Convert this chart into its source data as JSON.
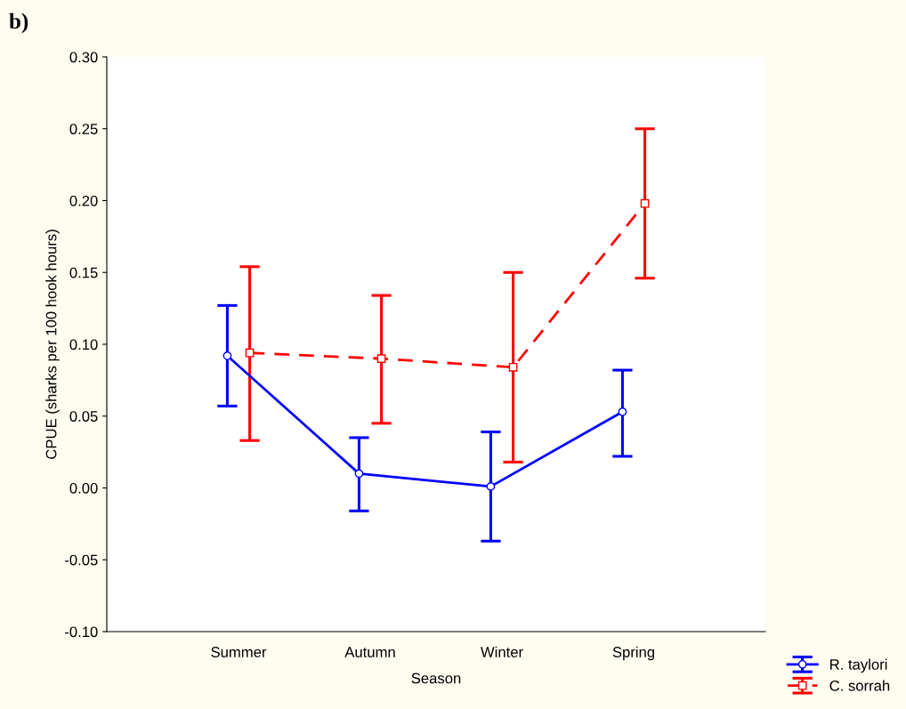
{
  "chart_data": {
    "type": "line",
    "title": "b)",
    "xlabel": "Season",
    "ylabel": "CPUE (sharks per 100 hook hours)",
    "categories": [
      "Summer",
      "Autumn",
      "Winter",
      "Spring"
    ],
    "series": [
      {
        "name": "R. taylori",
        "color": "#0000ff",
        "marker": "circle",
        "line_style": "solid",
        "values": [
          0.092,
          0.01,
          0.001,
          0.053
        ],
        "errors": [
          [
            0.057,
            0.127
          ],
          [
            -0.016,
            0.035
          ],
          [
            -0.037,
            0.039
          ],
          [
            0.022,
            0.082
          ]
        ]
      },
      {
        "name": "C. sorrah",
        "color": "#ff0000",
        "marker": "square",
        "line_style": "dashed",
        "values": [
          0.094,
          0.09,
          0.084,
          0.198
        ],
        "errors": [
          [
            0.033,
            0.154
          ],
          [
            0.045,
            0.134
          ],
          [
            0.018,
            0.15
          ],
          [
            0.146,
            0.25
          ]
        ]
      }
    ],
    "ylim": [
      -0.1,
      0.3
    ],
    "yticks": [
      {
        "value": -0.1,
        "label": "-0.10"
      },
      {
        "value": -0.05,
        "label": "-0.05"
      },
      {
        "value": 0,
        "label": "0.00"
      },
      {
        "value": 0.05,
        "label": "0.05"
      },
      {
        "value": 0.1,
        "label": "0.10"
      },
      {
        "value": 0.15,
        "label": "0.15"
      },
      {
        "value": 0.2,
        "label": "0.20"
      },
      {
        "value": 0.25,
        "label": "0.25"
      },
      {
        "value": 0.3,
        "label": "0.30"
      }
    ],
    "grid": false,
    "legend": "bottom right"
  }
}
